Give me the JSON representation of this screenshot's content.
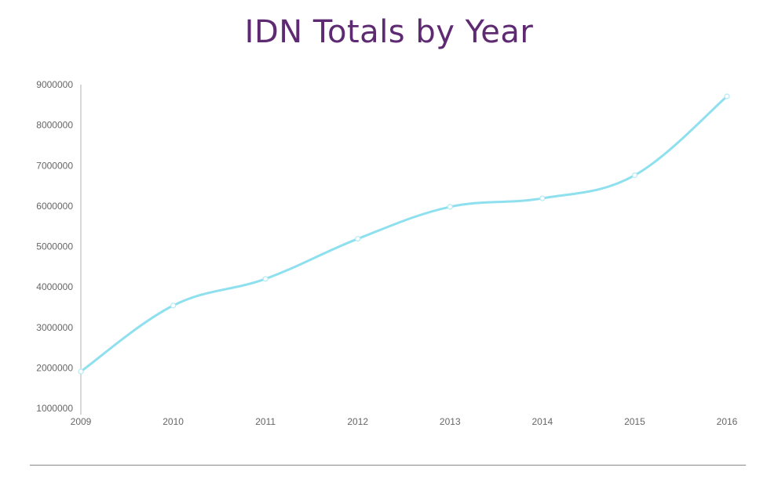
{
  "chart_data": {
    "type": "line",
    "title": "IDN Totals by Year",
    "xlabel": "",
    "ylabel": "",
    "categories": [
      "2009",
      "2010",
      "2011",
      "2012",
      "2013",
      "2014",
      "2015",
      "2016"
    ],
    "series": [
      {
        "name": "IDN Totals",
        "color": "#8fe0ef",
        "values": [
          1910000,
          3540000,
          4200000,
          5190000,
          5980000,
          6190000,
          6760000,
          8710000
        ]
      }
    ],
    "ylim": [
      1000000,
      9000000
    ],
    "yticks": [
      "1000000",
      "2000000",
      "3000000",
      "4000000",
      "5000000",
      "6000000",
      "7000000",
      "8000000",
      "9000000"
    ],
    "grid": false,
    "smooth": true
  }
}
